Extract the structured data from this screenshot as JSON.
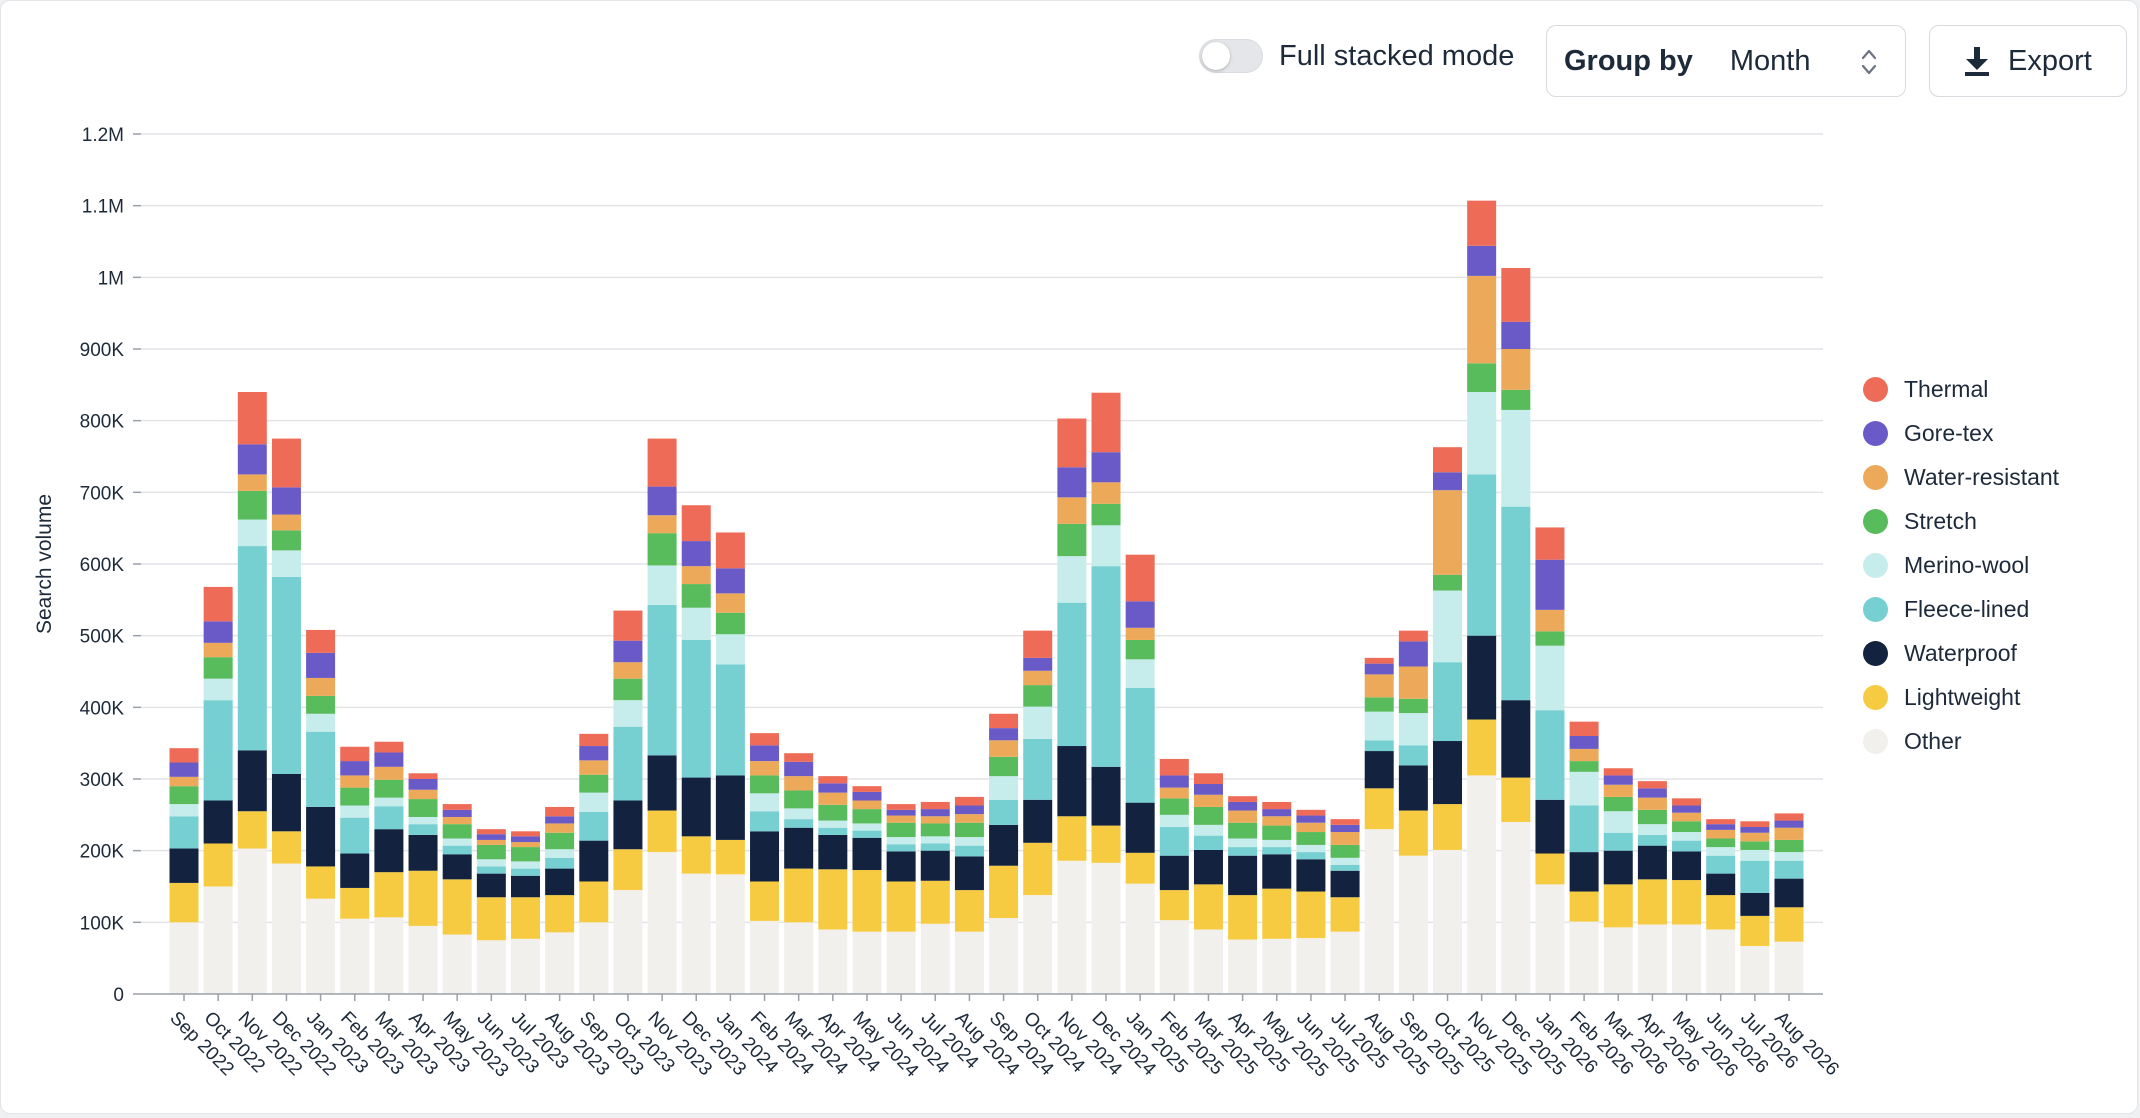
{
  "toolbar": {
    "toggle_label": "Full stacked mode",
    "toggle_on": false,
    "group_by_label": "Group by",
    "group_by_value": "Month",
    "export_label": "Export"
  },
  "icons": {
    "toggle": "toggle-switch-icon",
    "group_by": "chevron-up-down-icon",
    "export": "download-icon"
  },
  "colors": {
    "Thermal": "#ee6b57",
    "Gore-tex": "#6a5ac8",
    "Water-resistant": "#eda95a",
    "Stretch": "#58bb5c",
    "Merino-wool": "#c7ecec",
    "Fleece-lined": "#76cfd1",
    "Waterproof": "#13233f",
    "Lightweight": "#f6cb42",
    "Other": "#f2f0ed"
  },
  "chart_data": {
    "type": "bar",
    "stacked": true,
    "ylabel": "Search volume",
    "ylim": [
      0,
      1200000
    ],
    "yticks": [
      {
        "value": 0,
        "label": "0"
      },
      {
        "value": 100000,
        "label": "100K"
      },
      {
        "value": 200000,
        "label": "200K"
      },
      {
        "value": 300000,
        "label": "300K"
      },
      {
        "value": 400000,
        "label": "400K"
      },
      {
        "value": 500000,
        "label": "500K"
      },
      {
        "value": 600000,
        "label": "600K"
      },
      {
        "value": 700000,
        "label": "700K"
      },
      {
        "value": 800000,
        "label": "800K"
      },
      {
        "value": 900000,
        "label": "900K"
      },
      {
        "value": 1000000,
        "label": "1M"
      },
      {
        "value": 1100000,
        "label": "1.1M"
      },
      {
        "value": 1200000,
        "label": "1.2M"
      }
    ],
    "grid": true,
    "legend_position": "right",
    "categories": [
      "Sep 2022",
      "Oct 2022",
      "Nov 2022",
      "Dec 2022",
      "Jan 2023",
      "Feb 2023",
      "Mar 2023",
      "Apr 2023",
      "May 2023",
      "Jun 2023",
      "Jul 2023",
      "Aug 2023",
      "Sep 2023",
      "Oct 2023",
      "Nov 2023",
      "Dec 2023",
      "Jan 2024",
      "Feb 2024",
      "Mar 2024",
      "Apr 2024",
      "May 2024",
      "Jun 2024",
      "Jul 2024",
      "Aug 2024",
      "Sep 2024",
      "Oct 2024",
      "Nov 2024",
      "Dec 2024",
      "Jan 2025",
      "Feb 2025",
      "Mar 2025",
      "Apr 2025",
      "May 2025",
      "Jun 2025",
      "Jul 2025",
      "Aug 2025",
      "Sep 2025",
      "Oct 2025",
      "Nov 2025",
      "Dec 2025",
      "Jan 2026",
      "Feb 2026",
      "Mar 2026",
      "Apr 2026",
      "May 2026",
      "Jun 2026",
      "Jul 2026",
      "Aug 2026"
    ],
    "series": [
      {
        "name": "Other",
        "values": [
          100000,
          150000,
          203000,
          182000,
          133000,
          105000,
          107000,
          95000,
          83000,
          75000,
          77000,
          86000,
          100000,
          145000,
          198000,
          168000,
          167000,
          102000,
          100000,
          90000,
          87000,
          87000,
          98000,
          87000,
          106000,
          138000,
          186000,
          183000,
          154000,
          103000,
          90000,
          76000,
          77000,
          78000,
          87000,
          230000,
          193000,
          201000,
          305000,
          240000,
          153000,
          101000,
          93000,
          97000,
          97000,
          90000,
          67000,
          73000
        ]
      },
      {
        "name": "Lightweight",
        "values": [
          55000,
          60000,
          52000,
          45000,
          45000,
          43000,
          63000,
          77000,
          77000,
          60000,
          58000,
          52000,
          57000,
          57000,
          58000,
          52000,
          48000,
          55000,
          75000,
          84000,
          86000,
          70000,
          60000,
          58000,
          73000,
          73000,
          62000,
          52000,
          43000,
          42000,
          63000,
          62000,
          70000,
          65000,
          48000,
          57000,
          63000,
          64000,
          78000,
          62000,
          43000,
          42000,
          60000,
          63000,
          62000,
          48000,
          42000,
          48000
        ]
      },
      {
        "name": "Waterproof",
        "values": [
          48000,
          60000,
          85000,
          80000,
          83000,
          48000,
          60000,
          50000,
          35000,
          33000,
          30000,
          37000,
          57000,
          68000,
          77000,
          82000,
          90000,
          70000,
          57000,
          48000,
          45000,
          42000,
          42000,
          47000,
          57000,
          60000,
          98000,
          82000,
          70000,
          48000,
          48000,
          55000,
          48000,
          45000,
          37000,
          52000,
          63000,
          88000,
          117000,
          108000,
          75000,
          55000,
          47000,
          47000,
          40000,
          30000,
          32000,
          40000
        ]
      },
      {
        "name": "Fleece-lined",
        "values": [
          45000,
          140000,
          285000,
          275000,
          105000,
          50000,
          32000,
          15000,
          12000,
          10000,
          10000,
          15000,
          40000,
          103000,
          210000,
          192000,
          155000,
          28000,
          12000,
          10000,
          10000,
          10000,
          10000,
          15000,
          35000,
          85000,
          200000,
          280000,
          160000,
          40000,
          20000,
          12000,
          10000,
          10000,
          8000,
          15000,
          28000,
          110000,
          225000,
          270000,
          125000,
          65000,
          25000,
          15000,
          15000,
          25000,
          45000,
          25000
        ]
      },
      {
        "name": "Merino-wool",
        "values": [
          17000,
          30000,
          37000,
          37000,
          25000,
          17000,
          12000,
          10000,
          10000,
          10000,
          10000,
          12000,
          27000,
          37000,
          55000,
          45000,
          42000,
          25000,
          15000,
          10000,
          10000,
          10000,
          10000,
          12000,
          33000,
          45000,
          65000,
          57000,
          40000,
          17000,
          15000,
          12000,
          10000,
          10000,
          10000,
          40000,
          45000,
          100000,
          115000,
          135000,
          90000,
          47000,
          30000,
          15000,
          12000,
          12000,
          15000,
          12000
        ]
      },
      {
        "name": "Stretch",
        "values": [
          25000,
          30000,
          40000,
          28000,
          25000,
          25000,
          25000,
          25000,
          20000,
          20000,
          20000,
          23000,
          25000,
          30000,
          45000,
          33000,
          30000,
          25000,
          25000,
          22000,
          20000,
          20000,
          18000,
          20000,
          27000,
          30000,
          45000,
          30000,
          27000,
          23000,
          25000,
          22000,
          20000,
          18000,
          18000,
          20000,
          20000,
          22000,
          40000,
          28000,
          20000,
          15000,
          20000,
          20000,
          15000,
          12000,
          12000,
          17000
        ]
      },
      {
        "name": "Water-resistant",
        "values": [
          13000,
          20000,
          23000,
          22000,
          25000,
          17000,
          18000,
          13000,
          10000,
          7000,
          7000,
          13000,
          20000,
          23000,
          25000,
          25000,
          27000,
          20000,
          20000,
          17000,
          12000,
          10000,
          10000,
          12000,
          23000,
          20000,
          37000,
          30000,
          17000,
          15000,
          17000,
          17000,
          13000,
          13000,
          18000,
          32000,
          45000,
          118000,
          122000,
          57000,
          30000,
          17000,
          17000,
          17000,
          12000,
          12000,
          12000,
          17000
        ]
      },
      {
        "name": "Gore-tex",
        "values": [
          20000,
          30000,
          42000,
          38000,
          35000,
          20000,
          20000,
          15000,
          10000,
          8000,
          8000,
          10000,
          20000,
          30000,
          40000,
          35000,
          35000,
          22000,
          20000,
          13000,
          12000,
          8000,
          10000,
          12000,
          17000,
          18000,
          42000,
          42000,
          37000,
          17000,
          15000,
          12000,
          10000,
          10000,
          10000,
          15000,
          35000,
          25000,
          42000,
          38000,
          70000,
          18000,
          13000,
          13000,
          10000,
          8000,
          8000,
          10000
        ]
      },
      {
        "name": "Thermal",
        "values": [
          20000,
          48000,
          73000,
          68000,
          32000,
          20000,
          15000,
          8000,
          8000,
          7000,
          7000,
          13000,
          17000,
          42000,
          67000,
          50000,
          50000,
          17000,
          12000,
          10000,
          8000,
          8000,
          10000,
          12000,
          20000,
          38000,
          68000,
          83000,
          65000,
          23000,
          15000,
          8000,
          10000,
          8000,
          8000,
          8000,
          15000,
          35000,
          63000,
          75000,
          45000,
          20000,
          10000,
          10000,
          10000,
          7000,
          8000,
          10000
        ]
      }
    ]
  }
}
